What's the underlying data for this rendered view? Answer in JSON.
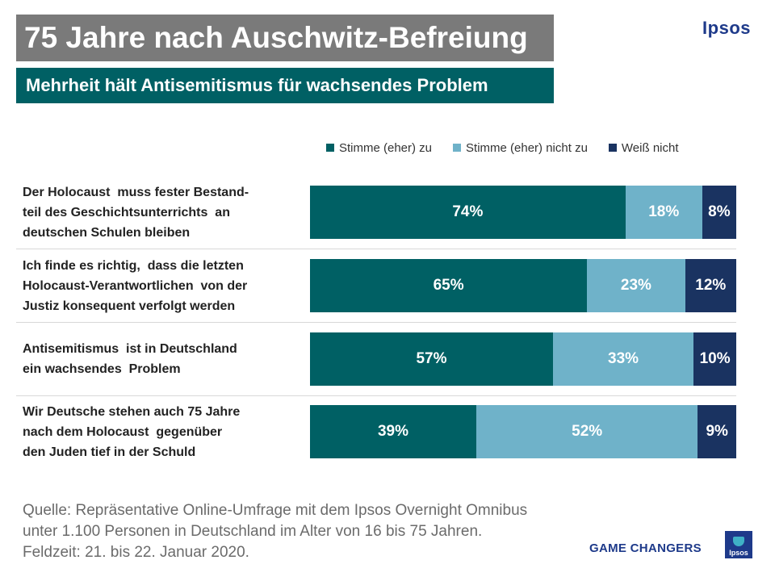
{
  "header": {
    "title": "75 Jahre nach Auschwitz-Befreiung",
    "subtitle": "Mehrheit hält Antisemitismus für wachsendes Problem",
    "brand": "Ipsos"
  },
  "colors": {
    "agree": "#006064",
    "disagree": "#6fb2c9",
    "dont_know": "#1a3361"
  },
  "chart_data": {
    "type": "bar",
    "orientation": "horizontal",
    "stacked": true,
    "legend": [
      "Stimme (eher) zu",
      "Stimme (eher) nicht zu",
      "Weiß nicht"
    ],
    "legend_position": "top-right",
    "categories": [
      [
        "Der Holocaust  muss fester Bestand-",
        "teil des Geschichtsunterrichts  an",
        "deutschen Schulen bleiben"
      ],
      [
        "Ich finde es richtig,  dass die letzten",
        "Holocaust-Verantwortlichen  von der",
        "Justiz konsequent verfolgt werden"
      ],
      [
        "Antisemitismus  ist in Deutschland",
        "ein wachsendes  Problem"
      ],
      [
        "Wir Deutsche stehen auch 75 Jahre",
        "nach dem Holocaust  gegenüber",
        "den Juden tief in der Schuld"
      ]
    ],
    "series": [
      {
        "name": "Stimme (eher) zu",
        "values": [
          74,
          65,
          57,
          39
        ]
      },
      {
        "name": "Stimme (eher) nicht zu",
        "values": [
          18,
          23,
          33,
          52
        ]
      },
      {
        "name": "Weiß nicht",
        "values": [
          8,
          12,
          10,
          9
        ]
      }
    ],
    "value_suffix": "%",
    "xlim": [
      0,
      100
    ]
  },
  "footer": {
    "source_lines": [
      "Quelle: Repräsentative Online-Umfrage mit dem Ipsos Overnight Omnibus",
      "unter 1.100 Personen in Deutschland im Alter von 16 bis 75 Jahren.",
      "Feldzeit: 21. bis 22. Januar 2020."
    ],
    "tagline": "GAME CHANGERS",
    "logo_text": "Ipsos"
  }
}
